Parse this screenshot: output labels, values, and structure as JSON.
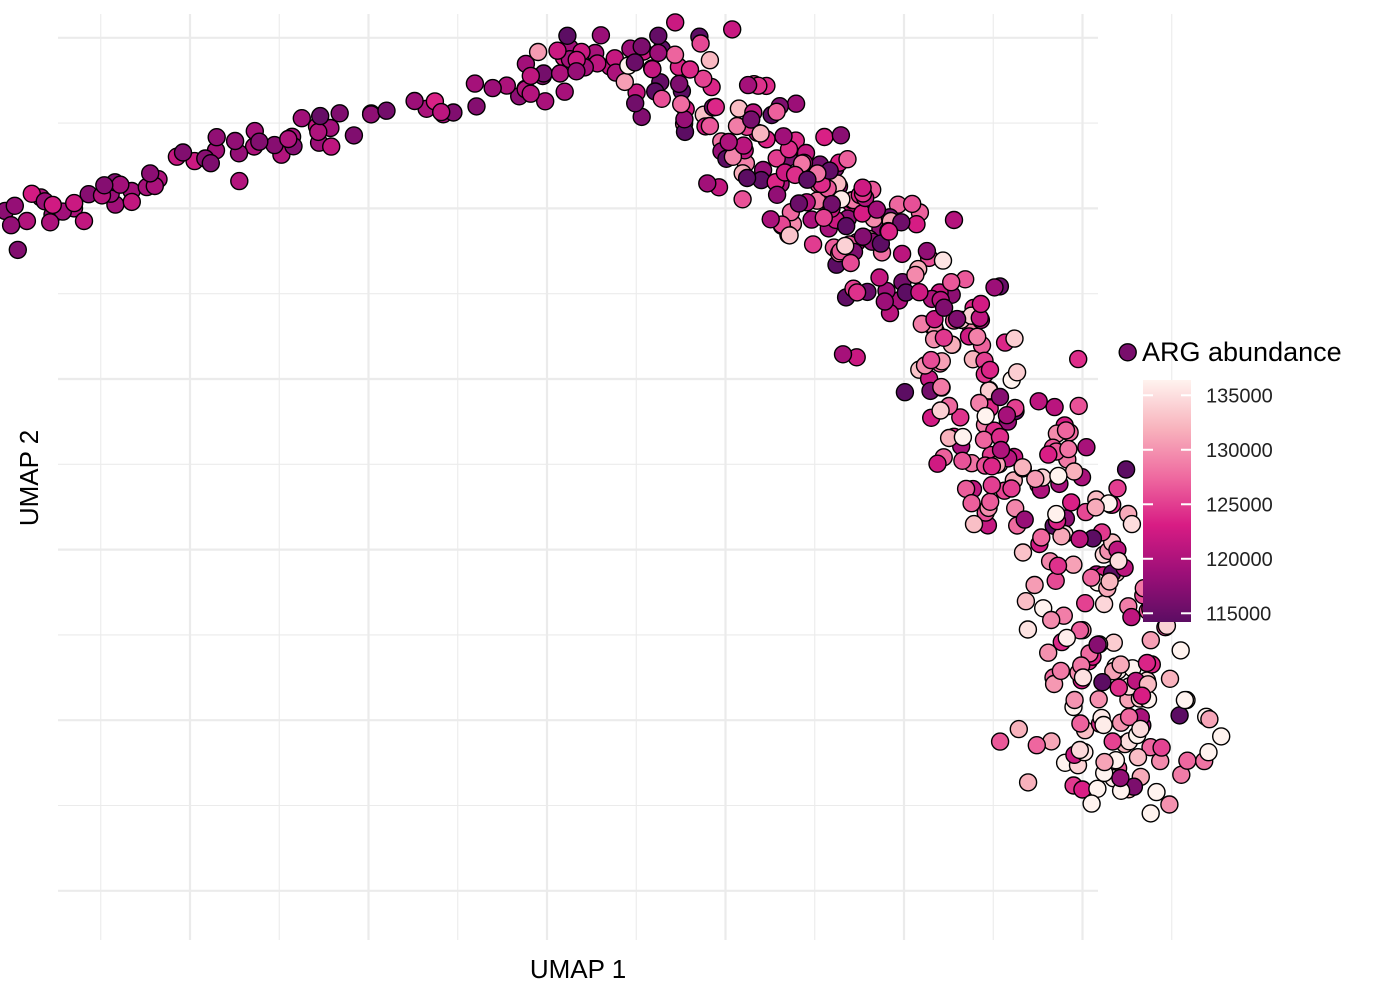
{
  "chart_data": {
    "type": "scatter",
    "xlabel": "UMAP 1",
    "ylabel": "UMAP 2",
    "grid": true,
    "legend": {
      "title": "ARG abundance",
      "placement": "right",
      "min": 114200,
      "max": 136400,
      "ticks": [
        {
          "value": 115000,
          "label": "115000"
        },
        {
          "value": 120000,
          "label": "120000"
        },
        {
          "value": 125000,
          "label": "125000"
        },
        {
          "value": 130000,
          "label": "130000"
        },
        {
          "value": 135000,
          "label": "135000"
        }
      ],
      "colors": [
        "#5c0d63",
        "#9c0f78",
        "#d81c84",
        "#ef6aa0",
        "#f8b3bd",
        "#fff3ef"
      ]
    },
    "marker_stroke": "#000000",
    "arms": [
      {
        "points": [
          [
            -5.05,
            0.05
          ],
          [
            -4.6,
            0.5
          ],
          [
            -4.1,
            1.1
          ],
          [
            -3.4,
            1.7
          ],
          [
            -2.7,
            2.0
          ],
          [
            -1.5,
            2.8
          ],
          [
            -0.9,
            3.05
          ],
          [
            0.05,
            3.6
          ],
          [
            0.45,
            3.85
          ]
        ],
        "lo": 114500,
        "hi": 122000,
        "count": 170,
        "spread": 0.22
      },
      {
        "points": [
          [
            0.45,
            3.85
          ],
          [
            1.05,
            3.1
          ],
          [
            1.75,
            1.8
          ],
          [
            2.25,
            0.6
          ],
          [
            2.6,
            -0.6
          ],
          [
            2.9,
            -1.9
          ],
          [
            3.1,
            -3.1
          ],
          [
            3.25,
            -4.4
          ],
          [
            3.25,
            -4.9
          ]
        ],
        "lo": 114500,
        "hi": 136000,
        "count": 460,
        "spread": 0.36
      }
    ]
  }
}
